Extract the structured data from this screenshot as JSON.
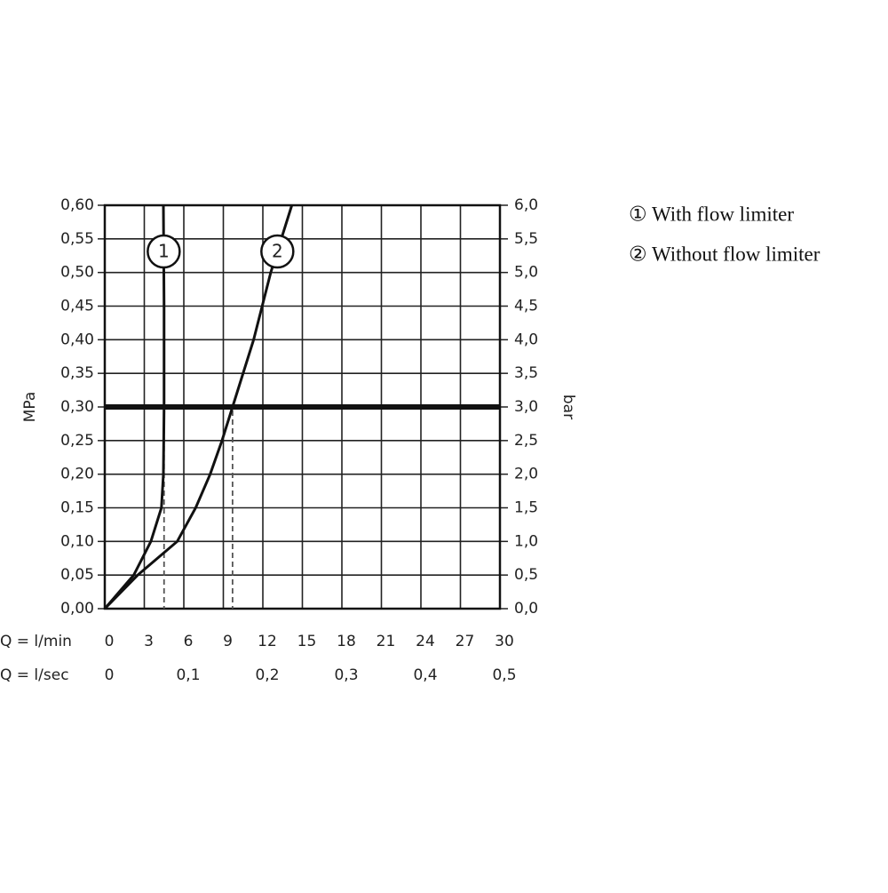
{
  "chart_data": {
    "type": "line",
    "y_title": "MPa",
    "y2_title": "bar",
    "x_title": "Q = l/min",
    "x2_title": "Q = l/sec",
    "xlim": [
      0,
      30
    ],
    "xticks": [
      0,
      3,
      6,
      9,
      12,
      15,
      18,
      21,
      24,
      27,
      30
    ],
    "x2lim": [
      0,
      0.5
    ],
    "x2ticks": [
      0,
      {
        "value": 0.1,
        "label": "0,1"
      },
      {
        "value": 0.2,
        "label": "0,2"
      },
      {
        "value": 0.3,
        "label": "0,3"
      },
      {
        "value": 0.4,
        "label": "0,4"
      },
      {
        "value": 0.5,
        "label": "0,5"
      }
    ],
    "ylim": [
      0,
      0.6
    ],
    "yticks": [
      {
        "value": 0,
        "label": "0,00"
      },
      {
        "value": 0.05,
        "label": "0,05"
      },
      {
        "value": 0.1,
        "label": "0,10"
      },
      {
        "value": 0.15,
        "label": "0,15"
      },
      {
        "value": 0.2,
        "label": "0,20"
      },
      {
        "value": 0.25,
        "label": "0,25"
      },
      {
        "value": 0.3,
        "label": "0,30"
      },
      {
        "value": 0.35,
        "label": "0,35"
      },
      {
        "value": 0.4,
        "label": "0,40"
      },
      {
        "value": 0.45,
        "label": "0,45"
      },
      {
        "value": 0.5,
        "label": "0,50"
      },
      {
        "value": 0.55,
        "label": "0,55"
      },
      {
        "value": 0.6,
        "label": "0,60"
      }
    ],
    "y2lim": [
      0,
      6
    ],
    "y2ticks": [
      {
        "value": 0,
        "label": "0,0"
      },
      {
        "value": 0.5,
        "label": "0,5"
      },
      {
        "value": 1,
        "label": "1,0"
      },
      {
        "value": 1.5,
        "label": "1,5"
      },
      {
        "value": 2,
        "label": "2,0"
      },
      {
        "value": 2.5,
        "label": "2,5"
      },
      {
        "value": 3,
        "label": "3,0"
      },
      {
        "value": 3.5,
        "label": "3,5"
      },
      {
        "value": 4,
        "label": "4,0"
      },
      {
        "value": 4.5,
        "label": "4,5"
      },
      {
        "value": 5,
        "label": "5,0"
      },
      {
        "value": 5.5,
        "label": "5,5"
      },
      {
        "value": 6,
        "label": "6,0"
      }
    ],
    "grid": true,
    "reference_y": 0.3,
    "dashed_guides_x": [
      4.5,
      9.7
    ],
    "series": [
      {
        "name": "1",
        "color": "#111111",
        "x": [
          0,
          2.2,
          3.5,
          4.3,
          4.45,
          4.5,
          4.5,
          4.45
        ],
        "values": [
          0,
          0.05,
          0.1,
          0.15,
          0.2,
          0.3,
          0.45,
          0.6
        ]
      },
      {
        "name": "2",
        "color": "#111111",
        "x": [
          0,
          2.5,
          5.5,
          6.9,
          8.0,
          8.9,
          9.7,
          11.3,
          12.6,
          14.2
        ],
        "values": [
          0,
          0.05,
          0.1,
          0.15,
          0.2,
          0.25,
          0.3,
          0.4,
          0.5,
          0.6
        ]
      }
    ],
    "legend": [
      "① With flow limiter",
      "② Without flow limiter"
    ]
  }
}
